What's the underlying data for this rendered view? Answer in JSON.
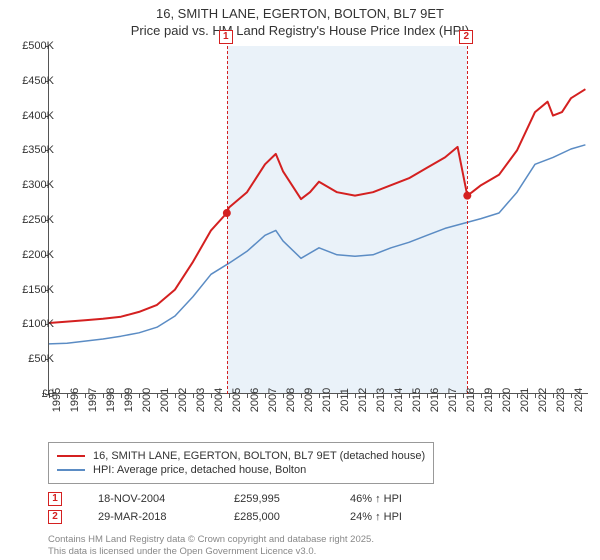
{
  "title_line1": "16, SMITH LANE, EGERTON, BOLTON, BL7 9ET",
  "title_line2": "Price paid vs. HM Land Registry's House Price Index (HPI)",
  "chart": {
    "type": "line",
    "background_color": "#ffffff",
    "shaded_band_color": "#eaf2f9",
    "x": {
      "min": 1995,
      "max": 2025,
      "ticks": [
        1995,
        1996,
        1997,
        1998,
        1999,
        2000,
        2001,
        2002,
        2003,
        2004,
        2005,
        2006,
        2007,
        2008,
        2009,
        2010,
        2011,
        2012,
        2013,
        2014,
        2015,
        2016,
        2017,
        2018,
        2019,
        2020,
        2021,
        2022,
        2023,
        2024
      ],
      "label_fontsize": 11
    },
    "y": {
      "min": 0,
      "max": 500000,
      "ticks": [
        0,
        50000,
        100000,
        150000,
        200000,
        250000,
        300000,
        350000,
        400000,
        450000,
        500000
      ],
      "tick_labels": [
        "£0",
        "£50K",
        "£100K",
        "£150K",
        "£200K",
        "£250K",
        "£300K",
        "£350K",
        "£400K",
        "£450K",
        "£500K"
      ],
      "label_fontsize": 11
    },
    "shaded_range": {
      "x0": 2004.88,
      "x1": 2018.24
    },
    "series": [
      {
        "name": "property",
        "label": "16, SMITH LANE, EGERTON, BOLTON, BL7 9ET (detached house)",
        "color": "#d42020",
        "line_width": 2,
        "data": [
          [
            1995,
            102000
          ],
          [
            1996,
            104000
          ],
          [
            1997,
            106000
          ],
          [
            1998,
            108000
          ],
          [
            1999,
            111000
          ],
          [
            2000,
            118000
          ],
          [
            2001,
            128000
          ],
          [
            2002,
            150000
          ],
          [
            2003,
            190000
          ],
          [
            2004,
            235000
          ],
          [
            2004.88,
            259995
          ],
          [
            2005,
            268000
          ],
          [
            2006,
            290000
          ],
          [
            2007,
            330000
          ],
          [
            2007.6,
            345000
          ],
          [
            2008,
            320000
          ],
          [
            2009,
            280000
          ],
          [
            2009.5,
            290000
          ],
          [
            2010,
            305000
          ],
          [
            2011,
            290000
          ],
          [
            2012,
            285000
          ],
          [
            2013,
            290000
          ],
          [
            2014,
            300000
          ],
          [
            2015,
            310000
          ],
          [
            2016,
            325000
          ],
          [
            2017,
            340000
          ],
          [
            2017.7,
            355000
          ],
          [
            2018.24,
            285000
          ],
          [
            2018.5,
            290000
          ],
          [
            2019,
            300000
          ],
          [
            2020,
            315000
          ],
          [
            2021,
            350000
          ],
          [
            2022,
            405000
          ],
          [
            2022.7,
            420000
          ],
          [
            2023,
            400000
          ],
          [
            2023.5,
            405000
          ],
          [
            2024,
            425000
          ],
          [
            2024.8,
            438000
          ]
        ]
      },
      {
        "name": "hpi",
        "label": "HPI: Average price, detached house, Bolton",
        "color": "#5b8cc4",
        "line_width": 1.5,
        "data": [
          [
            1995,
            72000
          ],
          [
            1996,
            73000
          ],
          [
            1997,
            76000
          ],
          [
            1998,
            79000
          ],
          [
            1999,
            83000
          ],
          [
            2000,
            88000
          ],
          [
            2001,
            96000
          ],
          [
            2002,
            112000
          ],
          [
            2003,
            140000
          ],
          [
            2004,
            172000
          ],
          [
            2005,
            188000
          ],
          [
            2006,
            205000
          ],
          [
            2007,
            228000
          ],
          [
            2007.6,
            235000
          ],
          [
            2008,
            220000
          ],
          [
            2009,
            195000
          ],
          [
            2010,
            210000
          ],
          [
            2011,
            200000
          ],
          [
            2012,
            198000
          ],
          [
            2013,
            200000
          ],
          [
            2014,
            210000
          ],
          [
            2015,
            218000
          ],
          [
            2016,
            228000
          ],
          [
            2017,
            238000
          ],
          [
            2018,
            245000
          ],
          [
            2019,
            252000
          ],
          [
            2020,
            260000
          ],
          [
            2021,
            290000
          ],
          [
            2022,
            330000
          ],
          [
            2023,
            340000
          ],
          [
            2024,
            352000
          ],
          [
            2024.8,
            358000
          ]
        ]
      }
    ],
    "sale_points": [
      {
        "x": 2004.88,
        "y": 259995,
        "n": "1"
      },
      {
        "x": 2018.24,
        "y": 285000,
        "n": "2"
      }
    ],
    "marker_color": "#d42020"
  },
  "legend": {
    "items": [
      {
        "color": "#d42020",
        "width": 2,
        "label": "16, SMITH LANE, EGERTON, BOLTON, BL7 9ET (detached house)"
      },
      {
        "color": "#5b8cc4",
        "width": 1.5,
        "label": "HPI: Average price, detached house, Bolton"
      }
    ]
  },
  "events": [
    {
      "n": "1",
      "date": "18-NOV-2004",
      "price": "£259,995",
      "delta": "46% ↑ HPI"
    },
    {
      "n": "2",
      "date": "29-MAR-2018",
      "price": "£285,000",
      "delta": "24% ↑ HPI"
    }
  ],
  "attribution_line1": "Contains HM Land Registry data © Crown copyright and database right 2025.",
  "attribution_line2": "This data is licensed under the Open Government Licence v3.0."
}
